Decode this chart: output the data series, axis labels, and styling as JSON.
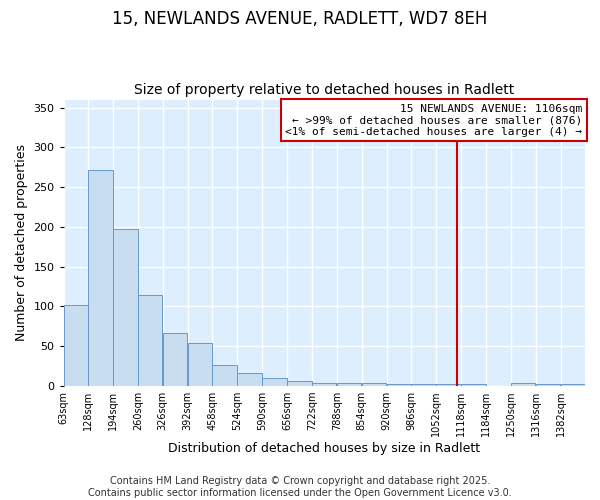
{
  "title_line1": "15, NEWLANDS AVENUE, RADLETT, WD7 8EH",
  "title_line2": "Size of property relative to detached houses in Radlett",
  "xlabel": "Distribution of detached houses by size in Radlett",
  "ylabel": "Number of detached properties",
  "bar_edges": [
    63,
    128,
    194,
    260,
    326,
    392,
    458,
    524,
    590,
    656,
    722,
    788,
    854,
    920,
    986,
    1052,
    1118,
    1184,
    1250,
    1316,
    1382
  ],
  "bar_heights": [
    102,
    272,
    197,
    115,
    67,
    54,
    26,
    17,
    10,
    7,
    4,
    4,
    4,
    3,
    3,
    3,
    3,
    0,
    4,
    3,
    3
  ],
  "bar_color": "#c8ddf0",
  "bar_edgecolor": "#6699cc",
  "background_color": "#ddeeff",
  "grid_color": "#ffffff",
  "vline_x": 1106,
  "vline_color": "#cc0000",
  "annotation_text": "15 NEWLANDS AVENUE: 1106sqm\n← >99% of detached houses are smaller (876)\n<1% of semi-detached houses are larger (4) →",
  "annotation_box_color": "#ffffff",
  "annotation_box_edgecolor": "#cc0000",
  "ylim": [
    0,
    360
  ],
  "yticks": [
    0,
    50,
    100,
    150,
    200,
    250,
    300,
    350
  ],
  "footer_text": "Contains HM Land Registry data © Crown copyright and database right 2025.\nContains public sector information licensed under the Open Government Licence v3.0.",
  "title_fontsize": 12,
  "subtitle_fontsize": 10,
  "axis_label_fontsize": 9,
  "tick_fontsize": 8,
  "annotation_fontsize": 8,
  "footer_fontsize": 7
}
